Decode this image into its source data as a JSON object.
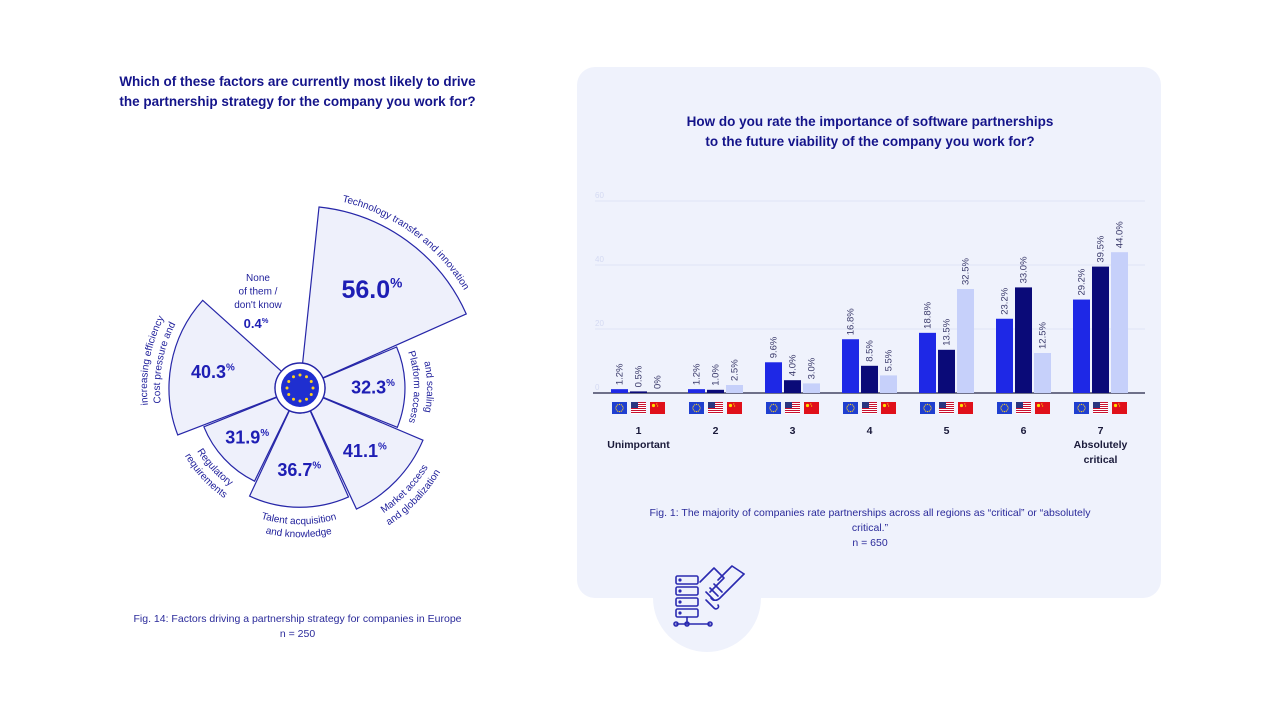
{
  "left": {
    "title_line1": "Which of these factors are currently most likely to drive",
    "title_line2": "the partnership strategy for the company you work for?",
    "caption_line1": "Fig. 14: Factors driving a partnership strategy for companies in Europe",
    "caption_line2": "n = 250"
  },
  "right": {
    "title_line1": "How do you rate the importance of software partnerships",
    "title_line2": "to the future viability of the company you work for?",
    "caption_line1": "Fig. 1: The majority of companies rate partnerships across all regions as “critical” or “absolutely",
    "caption_line2": "critical.”",
    "caption_line3": "n = 650"
  },
  "chart_data": [
    {
      "type": "pie",
      "labels": [
        "Technology transfer and innovation",
        "Platform access and scaling",
        "Market access and globalization",
        "Talent acquisition and knowledge",
        "Regulatory requirements",
        "Cost pressure and increasing efficiency",
        "None of them / don't know"
      ],
      "values": [
        56.0,
        32.3,
        41.1,
        36.7,
        31.9,
        40.3,
        0.4
      ],
      "value_labels": [
        "56.0",
        "32.3",
        "41.1",
        "36.7",
        "31.9",
        "40.3",
        "0.4"
      ],
      "none_label_lines": [
        "None",
        "of them /",
        "don't know"
      ],
      "unit": "%",
      "center_icon": "eu-flag-icon",
      "colors": {
        "fill": "#eef0fb",
        "stroke": "#2626a8",
        "text": "#1e1eb4"
      }
    },
    {
      "type": "bar",
      "categories": [
        "1",
        "2",
        "3",
        "4",
        "5",
        "6",
        "7"
      ],
      "category_labels": [
        "Unimportant",
        "",
        "",
        "",
        "",
        "",
        "Absolutely critical"
      ],
      "series": [
        {
          "icon": "eu-flag-icon",
          "values": [
            1.2,
            1.2,
            9.6,
            16.8,
            18.8,
            23.2,
            29.2
          ],
          "labels": [
            "1.2%",
            "1.2%",
            "9.6%",
            "16.8%",
            "18.8%",
            "23.2%",
            "29.2%"
          ],
          "color": "#1e28e6"
        },
        {
          "icon": "us-flag-icon",
          "values": [
            0.5,
            1.0,
            4.0,
            8.5,
            13.5,
            33.0,
            39.5
          ],
          "labels": [
            "0.5%",
            "1.0%",
            "4.0%",
            "8.5%",
            "13.5%",
            "33.0%",
            "39.5%"
          ],
          "color": "#0a0a78"
        },
        {
          "icon": "cn-flag-icon",
          "values": [
            0,
            2.5,
            3.0,
            5.5,
            32.5,
            12.5,
            44.0
          ],
          "labels": [
            "0%",
            "2.5%",
            "3.0%",
            "5.5%",
            "32.5%",
            "12.5%",
            "44.0%"
          ],
          "color": "#c6d0fa"
        }
      ],
      "yticks": [
        "0",
        "20",
        "40",
        "60"
      ],
      "ylim": [
        0,
        60
      ],
      "grid": true
    }
  ]
}
